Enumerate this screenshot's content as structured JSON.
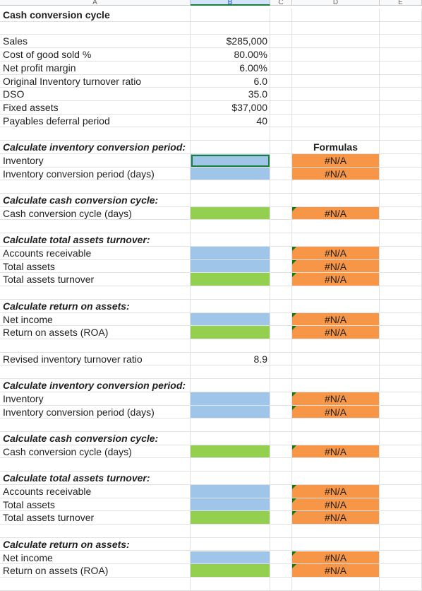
{
  "columns": {
    "a": "A",
    "b": "B",
    "c": "C",
    "d": "D",
    "e": "E"
  },
  "colors": {
    "input_blue": "#9fc5e8",
    "output_green": "#93d050",
    "formula_orange": "#f79646",
    "selection_green": "#188038",
    "error_triangle": "#0f7b0f"
  },
  "rows": [
    {
      "label": "Cash conversion cycle",
      "style": "bold"
    },
    {
      "label": ""
    },
    {
      "label": "Sales",
      "value": "$285,000"
    },
    {
      "label": "Cost of good sold %",
      "value": "80.00%"
    },
    {
      "label": "Net profit margin",
      "value": "6.00%"
    },
    {
      "label": "Original Inventory turnover ratio",
      "value": "6.0"
    },
    {
      "label": "DSO",
      "value": "35.0"
    },
    {
      "label": "Fixed assets",
      "value": "$37,000"
    },
    {
      "label": "Payables deferral period",
      "value": "40"
    },
    {
      "label": ""
    },
    {
      "label": "Calculate inventory conversion period:",
      "style": "bi",
      "d": "Formulas",
      "d_style": "bold"
    },
    {
      "label": "Inventory",
      "b_fill": "blue",
      "b_selected": true,
      "d": "#N/A",
      "d_fill": "orange"
    },
    {
      "label": "Inventory conversion period (days)",
      "b_fill": "blue",
      "d": "#N/A",
      "d_fill": "orange"
    },
    {
      "label": ""
    },
    {
      "label": "Calculate cash conversion cycle:",
      "style": "bi"
    },
    {
      "label": "Cash conversion cycle (days)",
      "b_fill": "green",
      "d": "#N/A",
      "d_fill": "orange",
      "flag": true
    },
    {
      "label": ""
    },
    {
      "label": "Calculate total assets turnover:",
      "style": "bi"
    },
    {
      "label": "Accounts receivable",
      "b_fill": "blue",
      "d": "#N/A",
      "d_fill": "orange",
      "flag": true
    },
    {
      "label": "Total assets",
      "b_fill": "blue",
      "d": "#N/A",
      "d_fill": "orange",
      "flag": true
    },
    {
      "label": "Total assets turnover",
      "b_fill": "green",
      "d": "#N/A",
      "d_fill": "orange",
      "flag": true
    },
    {
      "label": ""
    },
    {
      "label": "Calculate return on assets:",
      "style": "bi"
    },
    {
      "label": "Net income",
      "b_fill": "blue",
      "d": "#N/A",
      "d_fill": "orange",
      "flag": true
    },
    {
      "label": "Return on assets (ROA)",
      "b_fill": "green",
      "d": "#N/A",
      "d_fill": "orange",
      "flag": true
    },
    {
      "label": ""
    },
    {
      "label": "Revised inventory turnover ratio",
      "value": "8.9"
    },
    {
      "label": ""
    },
    {
      "label": "Calculate inventory conversion period:",
      "style": "bi"
    },
    {
      "label": "Inventory",
      "b_fill": "blue",
      "d": "#N/A",
      "d_fill": "orange",
      "flag": true
    },
    {
      "label": "Inventory conversion period (days)",
      "b_fill": "blue",
      "d": "#N/A",
      "d_fill": "orange",
      "flag": true
    },
    {
      "label": ""
    },
    {
      "label": "Calculate cash conversion cycle:",
      "style": "bi"
    },
    {
      "label": "Cash conversion cycle (days)",
      "b_fill": "green",
      "d": "#N/A",
      "d_fill": "orange",
      "flag": true
    },
    {
      "label": ""
    },
    {
      "label": "Calculate total assets turnover:",
      "style": "bi"
    },
    {
      "label": "Accounts receivable",
      "b_fill": "blue",
      "d": "#N/A",
      "d_fill": "orange",
      "flag": true
    },
    {
      "label": "Total assets",
      "b_fill": "blue",
      "d": "#N/A",
      "d_fill": "orange",
      "flag": true
    },
    {
      "label": "Total assets turnover",
      "b_fill": "green",
      "d": "#N/A",
      "d_fill": "orange",
      "flag": true
    },
    {
      "label": ""
    },
    {
      "label": "Calculate return on assets:",
      "style": "bi"
    },
    {
      "label": "Net income",
      "b_fill": "blue",
      "d": "#N/A",
      "d_fill": "orange",
      "flag": true
    },
    {
      "label": "Return on assets (ROA)",
      "b_fill": "green",
      "d": "#N/A",
      "d_fill": "orange",
      "flag": true
    },
    {
      "label": ""
    }
  ]
}
